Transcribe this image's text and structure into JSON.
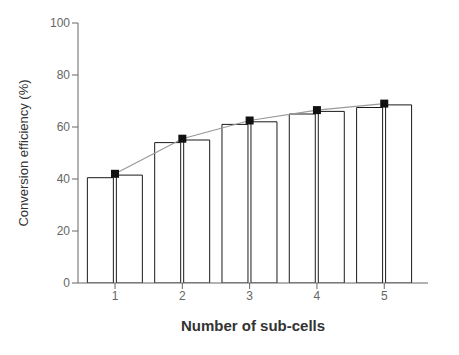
{
  "chart_data": {
    "type": "bar",
    "x": [
      1,
      2,
      3,
      4,
      5
    ],
    "series": [
      {
        "type": "bar",
        "color": "white",
        "values": [
          40.5,
          54.0,
          61.0,
          65.0,
          67.5
        ]
      },
      {
        "type": "bar",
        "color": "white",
        "values": [
          41.5,
          55.0,
          62.0,
          66.0,
          68.5
        ]
      },
      {
        "type": "line",
        "color": "#999999",
        "marker": "square",
        "values": [
          42.0,
          55.5,
          62.5,
          66.5,
          69.0
        ]
      }
    ],
    "xlabel": "Number of sub-cells",
    "ylabel": "Conversion efficiency (%)",
    "xlim": [
      0.45,
      5.65
    ],
    "xticks": [
      1,
      2,
      3,
      4,
      5
    ],
    "ylim": [
      0,
      100
    ],
    "yticks": [
      0,
      20,
      40,
      60,
      80,
      100
    ],
    "grid": false
  }
}
